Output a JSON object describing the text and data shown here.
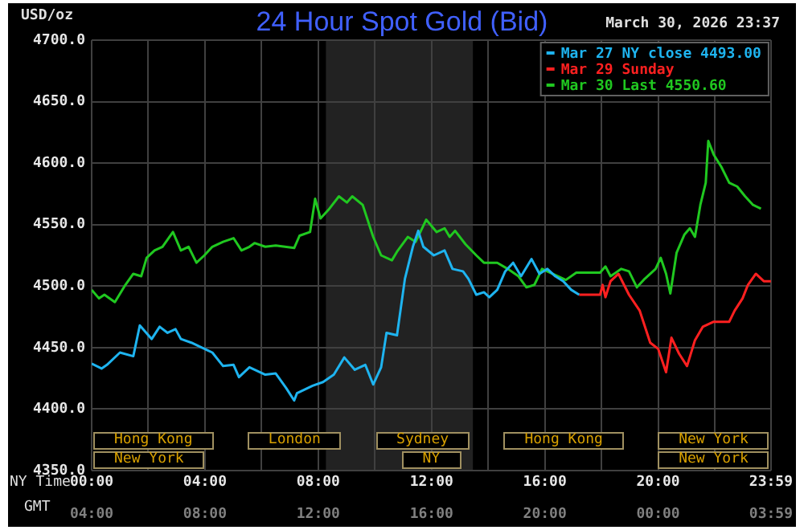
{
  "chart_data": {
    "type": "line",
    "title": "24 Hour Spot Gold (Bid)",
    "subtitle": "March 30, 2026 23:37",
    "ylabel": "USD/oz",
    "xlabel": "NY Time",
    "x2label": "GMT",
    "series": [
      {
        "name": "Mar 27 NY close 4493.00",
        "color": "#1eb4f0",
        "x": [
          0,
          0.35,
          0.54,
          1.0,
          1.47,
          1.7,
          2.12,
          2.4,
          2.68,
          2.96,
          3.15,
          3.52,
          3.89,
          4.26,
          4.64,
          5.01,
          5.2,
          5.57,
          6.13,
          6.5,
          6.87,
          7.15,
          7.25,
          7.8,
          8.17,
          8.55,
          8.92,
          9.29,
          9.66,
          9.94,
          10.22,
          10.41,
          10.78,
          11.06,
          11.34,
          11.53,
          11.71,
          12.08,
          12.46,
          12.74,
          13.11,
          13.3,
          13.58,
          13.85,
          14.04,
          14.32,
          14.6,
          14.88,
          15.16,
          15.53,
          15.81,
          16.09,
          16.37,
          16.65,
          16.93,
          17.21
        ],
        "values": [
          4437,
          4433,
          4436,
          4446,
          4443,
          4468,
          4457,
          4467,
          4462,
          4465,
          4457,
          4454,
          4450,
          4446,
          4435,
          4436,
          4426,
          4434,
          4428,
          4429,
          4417,
          4407,
          4413,
          4419,
          4422,
          4428,
          4442,
          4432,
          4436,
          4420,
          4434,
          4462,
          4460,
          4506,
          4532,
          4545,
          4532,
          4525,
          4529,
          4514,
          4512,
          4506,
          4493,
          4495,
          4491,
          4497,
          4512,
          4519,
          4508,
          4522,
          4510,
          4514,
          4508,
          4504,
          4497,
          4493
        ]
      },
      {
        "name": "Mar 29 Sunday",
        "color": "#ff2020",
        "x": [
          17.21,
          17.95,
          18.04,
          18.14,
          18.32,
          18.6,
          18.97,
          19.35,
          19.72,
          20.0,
          20.28,
          20.47,
          20.74,
          21.02,
          21.3,
          21.58,
          21.96,
          22.51,
          22.7,
          22.98,
          23.17,
          23.45,
          23.73,
          23.98
        ],
        "values": [
          4493,
          4493,
          4501,
          4491,
          4504,
          4510,
          4493,
          4480,
          4454,
          4449,
          4430,
          4458,
          4445,
          4435,
          4456,
          4467,
          4471,
          4471,
          4480,
          4490,
          4501,
          4510,
          4504,
          4504
        ]
      },
      {
        "name": "Mar 30 Last 4550.60",
        "color": "#20c820",
        "x": [
          0,
          0.26,
          0.45,
          0.82,
          1.19,
          1.47,
          1.75,
          1.94,
          2.22,
          2.5,
          2.87,
          3.15,
          3.42,
          3.7,
          3.98,
          4.26,
          4.64,
          5.01,
          5.29,
          5.57,
          5.75,
          6.13,
          6.5,
          7.15,
          7.34,
          7.71,
          7.89,
          8.08,
          8.36,
          8.73,
          9.01,
          9.2,
          9.57,
          9.94,
          10.22,
          10.6,
          10.78,
          11.16,
          11.44,
          11.81,
          12.18,
          12.46,
          12.64,
          12.83,
          13.2,
          13.58,
          13.85,
          14.32,
          14.69,
          15.07,
          15.35,
          15.63,
          15.9,
          16.27,
          16.74,
          17.11,
          17.95,
          18.14,
          18.32,
          18.7,
          18.97,
          19.25,
          19.53,
          19.91,
          20.09,
          20.28,
          20.43,
          20.65,
          20.93,
          21.12,
          21.3,
          21.49,
          21.68,
          21.77,
          21.96,
          22.23,
          22.51,
          22.79,
          23.07,
          23.35,
          23.63
        ],
        "values": [
          4497,
          4490,
          4493,
          4487,
          4501,
          4510,
          4508,
          4523,
          4529,
          4532,
          4544,
          4529,
          4532,
          4519,
          4525,
          4532,
          4536,
          4539,
          4529,
          4532,
          4535,
          4532,
          4533,
          4531,
          4541,
          4544,
          4571,
          4555,
          4562,
          4573,
          4568,
          4573,
          4566,
          4540,
          4525,
          4521,
          4528,
          4540,
          4536,
          4554,
          4544,
          4547,
          4540,
          4545,
          4534,
          4525,
          4519,
          4519,
          4514,
          4508,
          4499,
          4501,
          4514,
          4510,
          4505,
          4511,
          4511,
          4516,
          4508,
          4514,
          4512,
          4499,
          4506,
          4514,
          4523,
          4510,
          4494,
          4527,
          4542,
          4547,
          4540,
          4566,
          4584,
          4618,
          4607,
          4597,
          4584,
          4581,
          4573,
          4566,
          4563
        ]
      }
    ],
    "xlim": [
      0,
      23.983
    ],
    "xticks": [
      {
        "value": 0,
        "label": "00:00"
      },
      {
        "value": 2,
        "label": null
      },
      {
        "value": 4,
        "label": "04:00"
      },
      {
        "value": 6,
        "label": null
      },
      {
        "value": 8,
        "label": "08:00"
      },
      {
        "value": 10,
        "label": null
      },
      {
        "value": 12,
        "label": "12:00"
      },
      {
        "value": 14,
        "label": null
      },
      {
        "value": 16,
        "label": "16:00"
      },
      {
        "value": 18,
        "label": null
      },
      {
        "value": 20,
        "label": "20:00"
      },
      {
        "value": 22,
        "label": null
      },
      {
        "value": 23.983,
        "label": "23:59"
      }
    ],
    "x2lim": [
      "2026-03-30T04:00",
      "2026-03-31T03:59"
    ],
    "x2ticks": [
      {
        "value": "2026-03-30T04:00",
        "label": "04:00"
      },
      {
        "value": "2026-03-30T08:00",
        "label": "08:00"
      },
      {
        "value": "2026-03-30T12:00",
        "label": "12:00"
      },
      {
        "value": "2026-03-30T16:00",
        "label": "16:00"
      },
      {
        "value": "2026-03-30T20:00",
        "label": "20:00"
      },
      {
        "value": "2026-03-31T00:00",
        "label": "00:00"
      },
      {
        "value": "2026-03-31T03:59",
        "label": "03:59"
      }
    ],
    "ylim": [
      4350,
      4700
    ],
    "yticks": [
      {
        "value": 4350,
        "label": "4350.0"
      },
      {
        "value": 4400,
        "label": "4400.0"
      },
      {
        "value": 4450,
        "label": "4450.0"
      },
      {
        "value": 4500,
        "label": "4500.0"
      },
      {
        "value": 4550,
        "label": "4550.0"
      },
      {
        "value": 4600,
        "label": "4600.0"
      },
      {
        "value": 4650,
        "label": "4650.0"
      },
      {
        "value": 4700,
        "label": "4700.0"
      }
    ],
    "grid": true,
    "legend": "top right",
    "bands": [
      {
        "axis": "x",
        "from": 8.27,
        "to": 13.46,
        "color": "#222222"
      }
    ],
    "annotations": [
      "Hong Kong",
      "London",
      "Sydney",
      "Hong Kong",
      "New York",
      "New York",
      "NY",
      "New York"
    ]
  }
}
